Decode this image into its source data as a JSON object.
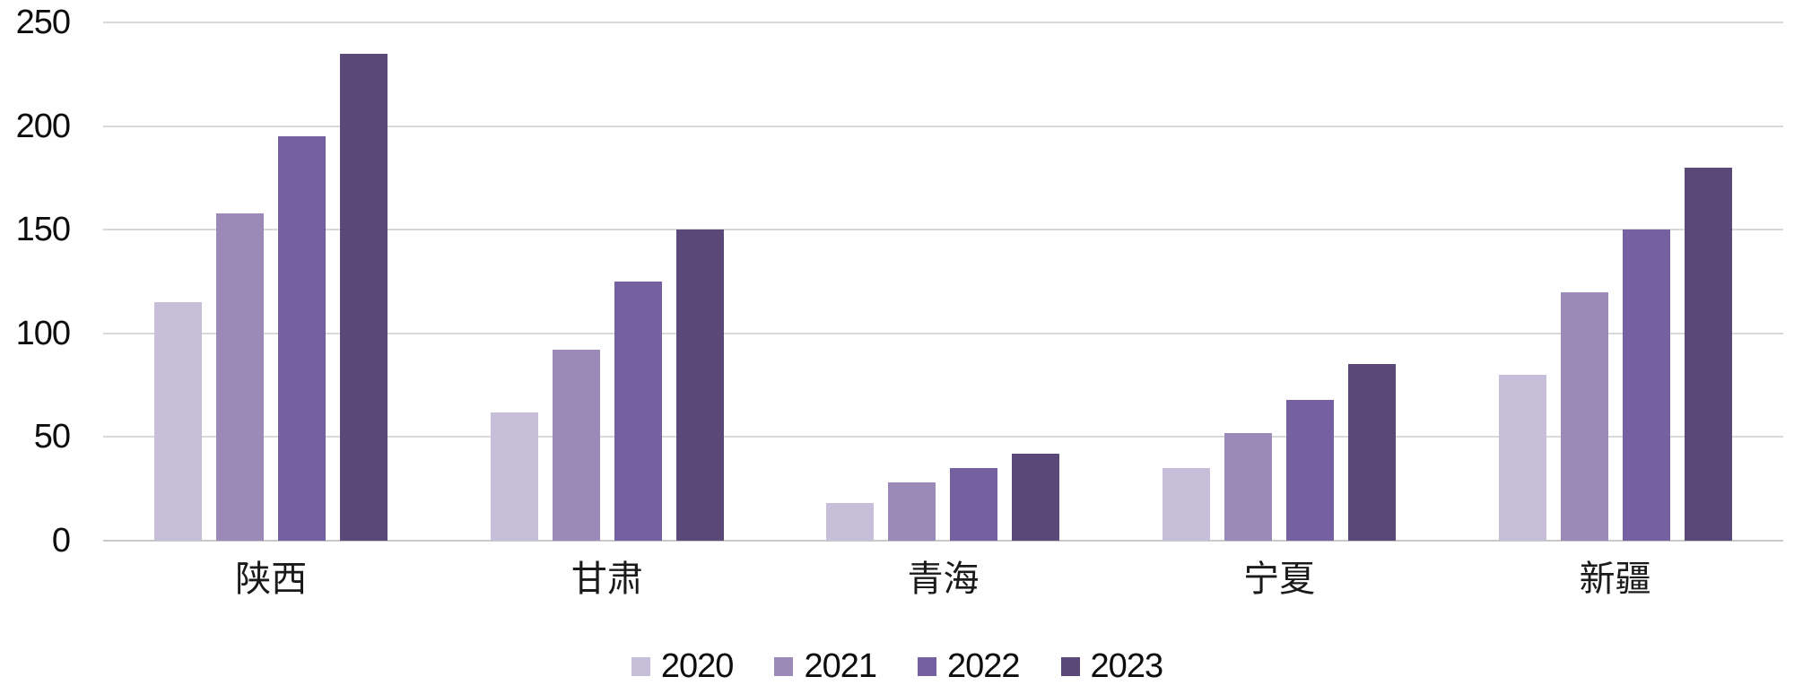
{
  "chart_data": {
    "type": "bar",
    "categories": [
      "陕西",
      "甘肃",
      "青海",
      "宁夏",
      "新疆"
    ],
    "series": [
      {
        "name": "2020",
        "color": "#C7BED9",
        "values": [
          115,
          62,
          18,
          35,
          80
        ]
      },
      {
        "name": "2021",
        "color": "#9B8AB8",
        "values": [
          158,
          92,
          28,
          52,
          120
        ]
      },
      {
        "name": "2022",
        "color": "#7560A2",
        "values": [
          195,
          125,
          35,
          68,
          150
        ]
      },
      {
        "name": "2023",
        "color": "#5A4878",
        "values": [
          235,
          150,
          42,
          85,
          180
        ]
      }
    ],
    "title": "",
    "xlabel": "",
    "ylabel": "",
    "ylim": [
      0,
      250
    ],
    "yticks": [
      0,
      50,
      100,
      150,
      200,
      250
    ],
    "grid": true,
    "legend_position": "bottom",
    "gridline_color": "#D9D9D9",
    "baseline_color": "#C9C9C9",
    "background_color": "#FFFFFF"
  }
}
